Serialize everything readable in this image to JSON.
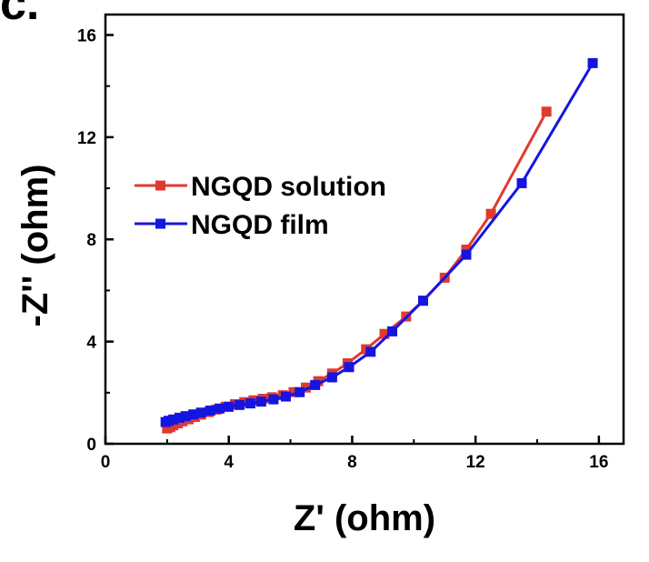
{
  "panel_label": "c.",
  "chart_data": {
    "type": "scatter",
    "title": "",
    "xlabel": "Z' (ohm)",
    "ylabel": "-Z'' (ohm)",
    "xlim": [
      0,
      16.8
    ],
    "ylim": [
      0,
      16.8
    ],
    "x_ticks": [
      0,
      4,
      8,
      12,
      16
    ],
    "y_ticks": [
      0,
      4,
      8,
      12,
      16
    ],
    "grid": false,
    "legend_position": "upper-left",
    "series": [
      {
        "name": "NGQD solution",
        "color": "#e03a2f",
        "marker": "square",
        "line": true,
        "points": [
          [
            2.0,
            0.6
          ],
          [
            2.1,
            0.65
          ],
          [
            2.2,
            0.72
          ],
          [
            2.35,
            0.8
          ],
          [
            2.5,
            0.88
          ],
          [
            2.7,
            0.96
          ],
          [
            2.9,
            1.05
          ],
          [
            3.1,
            1.14
          ],
          [
            3.35,
            1.24
          ],
          [
            3.6,
            1.34
          ],
          [
            3.9,
            1.45
          ],
          [
            4.2,
            1.55
          ],
          [
            4.5,
            1.63
          ],
          [
            4.8,
            1.7
          ],
          [
            5.1,
            1.76
          ],
          [
            5.4,
            1.82
          ],
          [
            5.75,
            1.9
          ],
          [
            6.1,
            2.02
          ],
          [
            6.5,
            2.2
          ],
          [
            6.9,
            2.45
          ],
          [
            7.35,
            2.75
          ],
          [
            7.85,
            3.15
          ],
          [
            8.45,
            3.7
          ],
          [
            9.05,
            4.3
          ],
          [
            9.75,
            4.98
          ],
          [
            10.3,
            5.6
          ],
          [
            11.0,
            6.5
          ],
          [
            11.7,
            7.6
          ],
          [
            12.5,
            9.0
          ],
          [
            14.3,
            13.0
          ]
        ]
      },
      {
        "name": "NGQD film",
        "color": "#1515e0",
        "marker": "square",
        "line": true,
        "points": [
          [
            1.95,
            0.85
          ],
          [
            2.05,
            0.9
          ],
          [
            2.2,
            0.95
          ],
          [
            2.4,
            1.02
          ],
          [
            2.6,
            1.08
          ],
          [
            2.85,
            1.15
          ],
          [
            3.1,
            1.22
          ],
          [
            3.4,
            1.3
          ],
          [
            3.7,
            1.38
          ],
          [
            4.0,
            1.45
          ],
          [
            4.35,
            1.52
          ],
          [
            4.7,
            1.58
          ],
          [
            5.05,
            1.65
          ],
          [
            5.45,
            1.74
          ],
          [
            5.85,
            1.85
          ],
          [
            6.3,
            2.02
          ],
          [
            6.8,
            2.3
          ],
          [
            7.35,
            2.6
          ],
          [
            7.9,
            3.0
          ],
          [
            8.6,
            3.6
          ],
          [
            9.3,
            4.4
          ],
          [
            10.3,
            5.6
          ],
          [
            11.7,
            7.4
          ],
          [
            13.5,
            10.2
          ],
          [
            15.8,
            14.9
          ]
        ]
      }
    ]
  }
}
